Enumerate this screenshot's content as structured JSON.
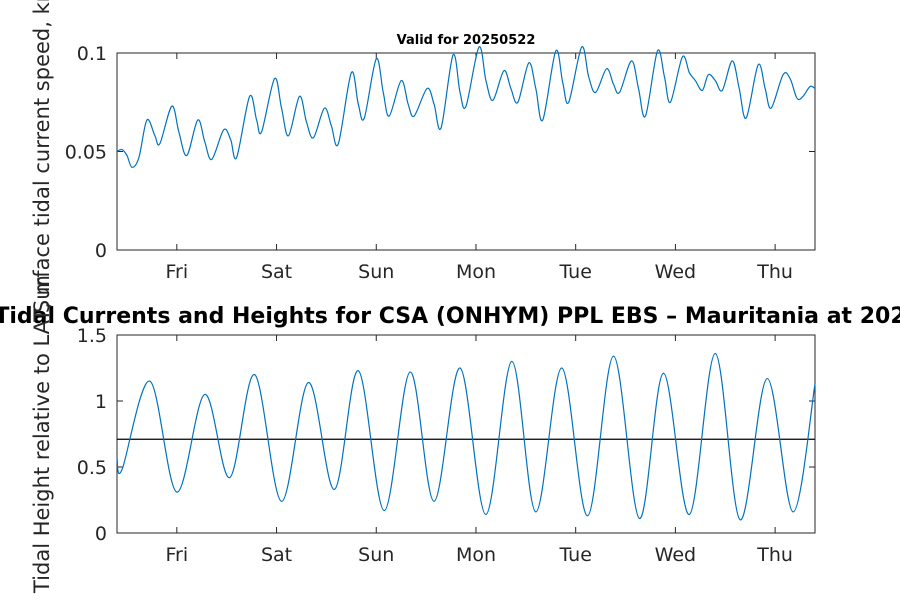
{
  "chart_data": [
    {
      "type": "line",
      "title": "Valid for 20250522",
      "ylabel": "Surface tidal current speed, kn",
      "xlabel": "",
      "x_unit": "days (tick labels are weekday names)",
      "xlim": [
        0,
        7
      ],
      "ylim": [
        0,
        0.1
      ],
      "xticks": [
        {
          "value": 0.6,
          "label": "Fri"
        },
        {
          "value": 1.6,
          "label": "Sat"
        },
        {
          "value": 2.6,
          "label": "Sun"
        },
        {
          "value": 3.6,
          "label": "Mon"
        },
        {
          "value": 4.6,
          "label": "Tue"
        },
        {
          "value": 5.6,
          "label": "Wed"
        },
        {
          "value": 6.6,
          "label": "Thu"
        }
      ],
      "yticks": [
        {
          "value": 0,
          "label": "0"
        },
        {
          "value": 0.05,
          "label": "0.05"
        },
        {
          "value": 0.1,
          "label": "0.1"
        }
      ],
      "grid": false,
      "series": [
        {
          "color": "#0072BD",
          "points": [
            [
              0.0,
              0.05
            ],
            [
              0.05,
              0.051
            ],
            [
              0.1,
              0.048
            ],
            [
              0.15,
              0.042
            ],
            [
              0.22,
              0.047
            ],
            [
              0.3,
              0.066
            ],
            [
              0.38,
              0.058
            ],
            [
              0.43,
              0.054
            ],
            [
              0.55,
              0.073
            ],
            [
              0.62,
              0.06
            ],
            [
              0.7,
              0.048
            ],
            [
              0.81,
              0.066
            ],
            [
              0.88,
              0.055
            ],
            [
              0.95,
              0.046
            ],
            [
              1.07,
              0.061
            ],
            [
              1.14,
              0.056
            ],
            [
              1.2,
              0.047
            ],
            [
              1.33,
              0.078
            ],
            [
              1.4,
              0.066
            ],
            [
              1.45,
              0.06
            ],
            [
              1.58,
              0.087
            ],
            [
              1.65,
              0.072
            ],
            [
              1.72,
              0.058
            ],
            [
              1.83,
              0.078
            ],
            [
              1.9,
              0.065
            ],
            [
              1.97,
              0.057
            ],
            [
              2.08,
              0.072
            ],
            [
              2.15,
              0.063
            ],
            [
              2.22,
              0.054
            ],
            [
              2.35,
              0.09
            ],
            [
              2.42,
              0.074
            ],
            [
              2.48,
              0.067
            ],
            [
              2.6,
              0.097
            ],
            [
              2.67,
              0.08
            ],
            [
              2.73,
              0.068
            ],
            [
              2.85,
              0.086
            ],
            [
              2.92,
              0.074
            ],
            [
              2.98,
              0.068
            ],
            [
              3.11,
              0.082
            ],
            [
              3.18,
              0.074
            ],
            [
              3.25,
              0.062
            ],
            [
              3.37,
              0.099
            ],
            [
              3.44,
              0.08
            ],
            [
              3.5,
              0.073
            ],
            [
              3.63,
              0.103
            ],
            [
              3.7,
              0.086
            ],
            [
              3.77,
              0.076
            ],
            [
              3.88,
              0.091
            ],
            [
              3.95,
              0.082
            ],
            [
              4.02,
              0.075
            ],
            [
              4.13,
              0.095
            ],
            [
              4.2,
              0.082
            ],
            [
              4.27,
              0.066
            ],
            [
              4.4,
              0.101
            ],
            [
              4.47,
              0.085
            ],
            [
              4.53,
              0.075
            ],
            [
              4.66,
              0.103
            ],
            [
              4.73,
              0.088
            ],
            [
              4.8,
              0.08
            ],
            [
              4.91,
              0.092
            ],
            [
              4.98,
              0.084
            ],
            [
              5.04,
              0.08
            ],
            [
              5.16,
              0.096
            ],
            [
              5.23,
              0.082
            ],
            [
              5.3,
              0.068
            ],
            [
              5.42,
              0.101
            ],
            [
              5.49,
              0.088
            ],
            [
              5.55,
              0.075
            ],
            [
              5.67,
              0.098
            ],
            [
              5.74,
              0.09
            ],
            [
              5.8,
              0.086
            ],
            [
              5.87,
              0.081
            ],
            [
              5.93,
              0.089
            ],
            [
              6.0,
              0.086
            ],
            [
              6.07,
              0.081
            ],
            [
              6.17,
              0.096
            ],
            [
              6.24,
              0.082
            ],
            [
              6.31,
              0.067
            ],
            [
              6.43,
              0.094
            ],
            [
              6.5,
              0.082
            ],
            [
              6.56,
              0.072
            ],
            [
              6.68,
              0.089
            ],
            [
              6.75,
              0.087
            ],
            [
              6.82,
              0.077
            ],
            [
              6.88,
              0.078
            ],
            [
              6.95,
              0.083
            ],
            [
              7.0,
              0.082
            ]
          ]
        }
      ]
    },
    {
      "type": "line",
      "title": "Tidal Currents and Heights for CSA (ONHYM) PPL EBS  – Mauritania at 202",
      "ylabel": "Tidal Height relative to LAT, m",
      "xlabel": "",
      "x_unit": "days (tick labels are weekday names)",
      "xlim": [
        0,
        7
      ],
      "ylim": [
        0,
        1.5
      ],
      "xticks": [
        {
          "value": 0.6,
          "label": "Fri"
        },
        {
          "value": 1.6,
          "label": "Sat"
        },
        {
          "value": 2.6,
          "label": "Sun"
        },
        {
          "value": 3.6,
          "label": "Mon"
        },
        {
          "value": 4.6,
          "label": "Tue"
        },
        {
          "value": 5.6,
          "label": "Wed"
        },
        {
          "value": 6.6,
          "label": "Thu"
        }
      ],
      "yticks": [
        {
          "value": 0,
          "label": "0"
        },
        {
          "value": 0.5,
          "label": "0.5"
        },
        {
          "value": 1,
          "label": "1"
        },
        {
          "value": 1.5,
          "label": "1.5"
        }
      ],
      "grid": false,
      "reference_line": {
        "y": 0.71,
        "color": "#000000"
      },
      "series": [
        {
          "color": "#0072BD",
          "points": [
            [
              0.0,
              0.57
            ],
            [
              0.05,
              0.48
            ],
            [
              0.33,
              1.15
            ],
            [
              0.6,
              0.31
            ],
            [
              0.88,
              1.05
            ],
            [
              1.13,
              0.42
            ],
            [
              1.38,
              1.2
            ],
            [
              1.65,
              0.24
            ],
            [
              1.92,
              1.14
            ],
            [
              2.18,
              0.33
            ],
            [
              2.42,
              1.23
            ],
            [
              2.68,
              0.17
            ],
            [
              2.94,
              1.22
            ],
            [
              3.18,
              0.24
            ],
            [
              3.44,
              1.25
            ],
            [
              3.7,
              0.14
            ],
            [
              3.96,
              1.3
            ],
            [
              4.2,
              0.16
            ],
            [
              4.46,
              1.25
            ],
            [
              4.72,
              0.13
            ],
            [
              4.98,
              1.34
            ],
            [
              5.24,
              0.11
            ],
            [
              5.48,
              1.21
            ],
            [
              5.74,
              0.14
            ],
            [
              6.0,
              1.36
            ],
            [
              6.25,
              0.1
            ],
            [
              6.52,
              1.17
            ],
            [
              6.78,
              0.16
            ],
            [
              7.0,
              1.13
            ]
          ]
        }
      ]
    }
  ]
}
